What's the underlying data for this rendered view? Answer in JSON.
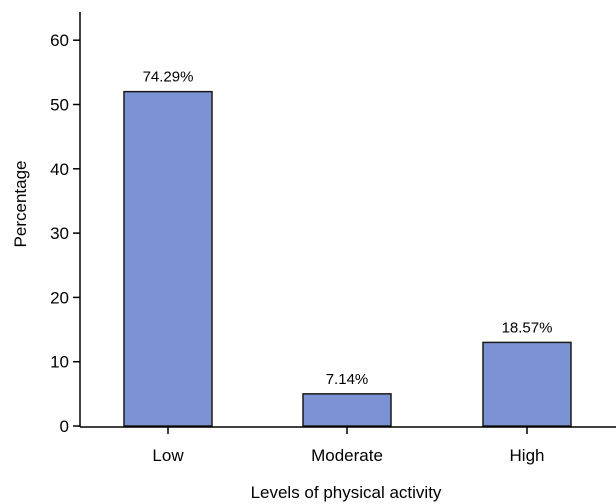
{
  "chart_data": {
    "type": "bar",
    "categories": [
      "Low",
      "Moderate",
      "High"
    ],
    "values": [
      52,
      5,
      13
    ],
    "data_labels": [
      "74.29%",
      "7.14%",
      "18.57%"
    ],
    "title": "",
    "xlabel": "Levels of physical activity",
    "ylabel": "Percentage",
    "ylim": [
      0,
      65
    ],
    "yticks": [
      0,
      10,
      20,
      30,
      40,
      50,
      60
    ],
    "bar_color": "#7b92d4",
    "bar_edge_color": "#1a1a1a",
    "grid": false,
    "legend": "none"
  }
}
